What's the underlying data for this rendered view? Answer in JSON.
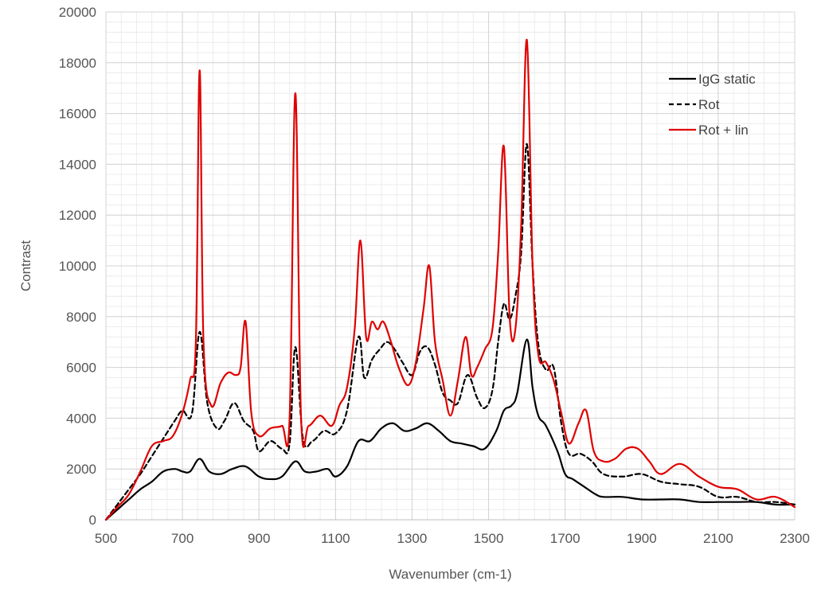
{
  "chart_data": {
    "type": "line",
    "title": "",
    "xlabel": "Wavenumber  (cm-1)",
    "ylabel": "Contrast",
    "xlim": [
      500,
      2300
    ],
    "ylim": [
      0,
      20000
    ],
    "x_ticks": [
      500,
      700,
      900,
      1100,
      1300,
      1500,
      1700,
      1900,
      2100,
      2300
    ],
    "y_ticks": [
      0,
      2000,
      4000,
      6000,
      8000,
      10000,
      12000,
      14000,
      16000,
      18000,
      20000
    ],
    "grid": true,
    "legend_position": "top-right",
    "series": [
      {
        "name": "IgG static",
        "color": "#000000",
        "dash": "solid",
        "x": [
          500,
          530,
          560,
          590,
          620,
          650,
          680,
          700,
          720,
          745,
          770,
          800,
          830,
          865,
          900,
          930,
          960,
          995,
          1020,
          1050,
          1080,
          1100,
          1130,
          1160,
          1190,
          1220,
          1250,
          1280,
          1310,
          1340,
          1370,
          1400,
          1430,
          1460,
          1490,
          1520,
          1540,
          1560,
          1575,
          1600,
          1615,
          1630,
          1650,
          1680,
          1700,
          1720,
          1750,
          1780,
          1800,
          1850,
          1900,
          1950,
          2000,
          2050,
          2100,
          2150,
          2200,
          2250,
          2300
        ],
        "y": [
          0,
          400,
          800,
          1200,
          1500,
          1900,
          2000,
          1900,
          1900,
          2400,
          1900,
          1800,
          2000,
          2100,
          1700,
          1600,
          1700,
          2300,
          1900,
          1900,
          2000,
          1700,
          2100,
          3100,
          3100,
          3600,
          3800,
          3500,
          3600,
          3800,
          3500,
          3100,
          3000,
          2900,
          2800,
          3500,
          4300,
          4500,
          5000,
          7100,
          5200,
          4100,
          3700,
          2700,
          1800,
          1600,
          1300,
          1000,
          900,
          900,
          800,
          800,
          800,
          700,
          700,
          700,
          700,
          600,
          600
        ]
      },
      {
        "name": "Rot",
        "color": "#000000",
        "dash": "dashed",
        "x": [
          500,
          530,
          560,
          590,
          620,
          650,
          680,
          700,
          725,
          745,
          765,
          790,
          810,
          835,
          860,
          885,
          900,
          930,
          960,
          980,
          995,
          1015,
          1040,
          1070,
          1100,
          1130,
          1160,
          1175,
          1195,
          1215,
          1235,
          1255,
          1275,
          1300,
          1320,
          1340,
          1360,
          1380,
          1400,
          1420,
          1445,
          1470,
          1490,
          1510,
          1525,
          1540,
          1555,
          1570,
          1585,
          1600,
          1615,
          1630,
          1650,
          1670,
          1690,
          1710,
          1740,
          1770,
          1800,
          1850,
          1900,
          1950,
          2000,
          2050,
          2100,
          2150,
          2200,
          2250,
          2300
        ],
        "y": [
          0,
          600,
          1200,
          1800,
          2500,
          3200,
          3900,
          4300,
          4200,
          7400,
          4600,
          3600,
          3900,
          4600,
          3900,
          3500,
          2700,
          3100,
          2800,
          3000,
          6800,
          3200,
          3100,
          3500,
          3400,
          4300,
          7200,
          5600,
          6300,
          6700,
          7000,
          6700,
          6200,
          5700,
          6600,
          6800,
          6100,
          5000,
          4700,
          4600,
          5700,
          4800,
          4400,
          5100,
          7000,
          8500,
          7900,
          8800,
          10500,
          14800,
          10000,
          6900,
          5900,
          6000,
          3800,
          2600,
          2600,
          2300,
          1800,
          1700,
          1800,
          1500,
          1400,
          1300,
          900,
          900,
          700,
          700,
          600
        ]
      },
      {
        "name": "Rot + lin",
        "color": "#e00000",
        "dash": "solid",
        "x": [
          500,
          530,
          560,
          590,
          620,
          650,
          675,
          700,
          720,
          735,
          745,
          755,
          775,
          800,
          820,
          840,
          852,
          865,
          880,
          900,
          930,
          960,
          980,
          995,
          1010,
          1030,
          1060,
          1090,
          1110,
          1130,
          1150,
          1165,
          1180,
          1195,
          1210,
          1225,
          1245,
          1265,
          1290,
          1310,
          1330,
          1345,
          1360,
          1380,
          1400,
          1420,
          1440,
          1455,
          1470,
          1490,
          1510,
          1525,
          1540,
          1555,
          1570,
          1585,
          1600,
          1615,
          1630,
          1650,
          1670,
          1690,
          1710,
          1735,
          1755,
          1775,
          1800,
          1830,
          1860,
          1890,
          1920,
          1950,
          2000,
          2050,
          2100,
          2150,
          2200,
          2250,
          2300
        ],
        "y": [
          0,
          500,
          1000,
          1900,
          2900,
          3100,
          3300,
          4200,
          5500,
          7000,
          17700,
          7000,
          4500,
          5400,
          5800,
          5700,
          6000,
          7800,
          4200,
          3300,
          3600,
          3700,
          4000,
          16800,
          4000,
          3700,
          4100,
          3700,
          4500,
          5200,
          7500,
          11000,
          7200,
          7800,
          7500,
          7800,
          7000,
          6000,
          5300,
          6200,
          8300,
          10000,
          7000,
          5500,
          4100,
          5500,
          7200,
          5700,
          6000,
          6700,
          7500,
          10500,
          14700,
          8000,
          7500,
          11500,
          18900,
          10000,
          6500,
          6200,
          5500,
          4200,
          3000,
          3800,
          4300,
          2700,
          2300,
          2400,
          2800,
          2800,
          2300,
          1800,
          2200,
          1700,
          1300,
          1200,
          800,
          900,
          500
        ]
      }
    ]
  }
}
